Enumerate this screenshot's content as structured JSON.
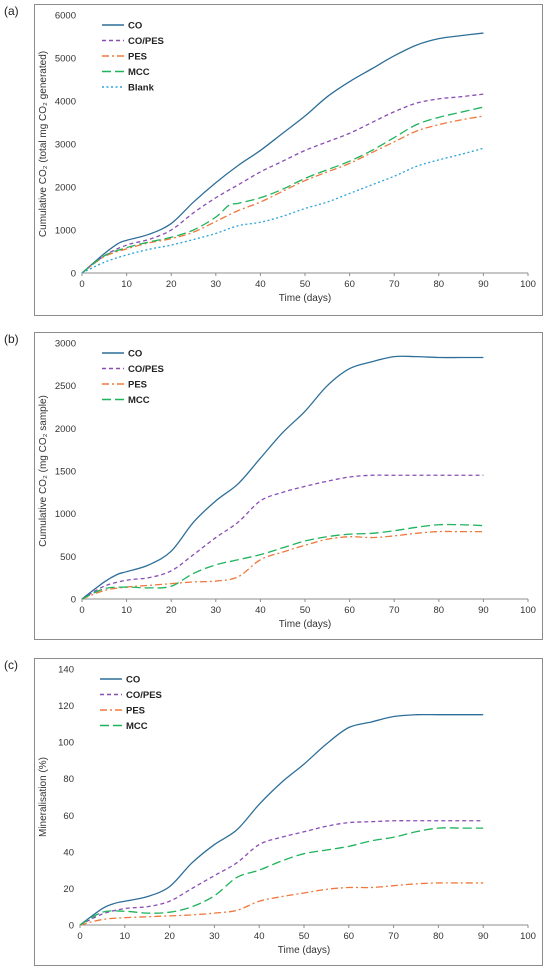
{
  "panels": [
    {
      "label": "(a)"
    },
    {
      "label": "(b)"
    },
    {
      "label": "(c)"
    }
  ],
  "chart_data": [
    {
      "type": "line",
      "panel": "(a)",
      "xlabel": "Time (days)",
      "ylabel": "Cumulative CO₂ (total mg CO₂ generated)",
      "xlim": [
        0,
        100
      ],
      "ylim": [
        0,
        6000
      ],
      "xticks": [
        0,
        10,
        20,
        30,
        40,
        50,
        60,
        70,
        80,
        90,
        100
      ],
      "yticks": [
        0,
        1000,
        2000,
        3000,
        4000,
        5000,
        6000
      ],
      "grid": false,
      "legend": "top-left",
      "series": [
        {
          "name": "CO",
          "color": "#2e6f99",
          "dash": "solid",
          "points": [
            [
              0,
              0
            ],
            [
              5,
              450
            ],
            [
              8,
              680
            ],
            [
              10,
              760
            ],
            [
              15,
              900
            ],
            [
              20,
              1150
            ],
            [
              25,
              1650
            ],
            [
              30,
              2100
            ],
            [
              35,
              2500
            ],
            [
              40,
              2850
            ],
            [
              45,
              3250
            ],
            [
              50,
              3650
            ],
            [
              55,
              4100
            ],
            [
              60,
              4450
            ],
            [
              65,
              4750
            ],
            [
              70,
              5050
            ],
            [
              75,
              5300
            ],
            [
              80,
              5450
            ],
            [
              85,
              5520
            ],
            [
              90,
              5580
            ]
          ]
        },
        {
          "name": "CO/PES",
          "color": "#8a4db5",
          "dash": "dash",
          "points": [
            [
              0,
              0
            ],
            [
              5,
              400
            ],
            [
              10,
              650
            ],
            [
              15,
              780
            ],
            [
              20,
              1000
            ],
            [
              25,
              1400
            ],
            [
              30,
              1750
            ],
            [
              35,
              2050
            ],
            [
              40,
              2350
            ],
            [
              45,
              2600
            ],
            [
              50,
              2850
            ],
            [
              55,
              3050
            ],
            [
              60,
              3250
            ],
            [
              65,
              3500
            ],
            [
              70,
              3750
            ],
            [
              75,
              3950
            ],
            [
              80,
              4050
            ],
            [
              85,
              4100
            ],
            [
              90,
              4160
            ]
          ]
        },
        {
          "name": "PES",
          "color": "#f0783c",
          "dash": "dashdot",
          "points": [
            [
              0,
              0
            ],
            [
              5,
              380
            ],
            [
              10,
              560
            ],
            [
              15,
              700
            ],
            [
              20,
              800
            ],
            [
              25,
              950
            ],
            [
              30,
              1200
            ],
            [
              35,
              1450
            ],
            [
              40,
              1650
            ],
            [
              45,
              1900
            ],
            [
              50,
              2150
            ],
            [
              55,
              2350
            ],
            [
              60,
              2550
            ],
            [
              65,
              2800
            ],
            [
              70,
              3050
            ],
            [
              75,
              3300
            ],
            [
              80,
              3450
            ],
            [
              85,
              3560
            ],
            [
              90,
              3650
            ]
          ]
        },
        {
          "name": "MCC",
          "color": "#1fb35c",
          "dash": "longdash",
          "points": [
            [
              0,
              0
            ],
            [
              5,
              400
            ],
            [
              10,
              590
            ],
            [
              15,
              720
            ],
            [
              20,
              830
            ],
            [
              25,
              1000
            ],
            [
              30,
              1300
            ],
            [
              33,
              1580
            ],
            [
              35,
              1620
            ],
            [
              40,
              1750
            ],
            [
              45,
              1950
            ],
            [
              50,
              2200
            ],
            [
              55,
              2400
            ],
            [
              60,
              2600
            ],
            [
              65,
              2850
            ],
            [
              70,
              3150
            ],
            [
              75,
              3450
            ],
            [
              80,
              3620
            ],
            [
              85,
              3740
            ],
            [
              90,
              3860
            ]
          ]
        },
        {
          "name": "Blank",
          "color": "#2ba3d9",
          "dash": "dot",
          "points": [
            [
              0,
              0
            ],
            [
              5,
              250
            ],
            [
              10,
              420
            ],
            [
              15,
              550
            ],
            [
              20,
              650
            ],
            [
              25,
              780
            ],
            [
              30,
              920
            ],
            [
              35,
              1100
            ],
            [
              40,
              1180
            ],
            [
              45,
              1320
            ],
            [
              50,
              1500
            ],
            [
              55,
              1650
            ],
            [
              60,
              1850
            ],
            [
              65,
              2050
            ],
            [
              70,
              2250
            ],
            [
              75,
              2480
            ],
            [
              80,
              2630
            ],
            [
              85,
              2760
            ],
            [
              90,
              2900
            ]
          ]
        }
      ]
    },
    {
      "type": "line",
      "panel": "(b)",
      "xlabel": "Time (days)",
      "ylabel": "Cumulative CO₂ (mg CO₂ sample)",
      "xlim": [
        0,
        100
      ],
      "ylim": [
        0,
        3000
      ],
      "xticks": [
        0,
        10,
        20,
        30,
        40,
        50,
        60,
        70,
        80,
        90,
        100
      ],
      "yticks": [
        0,
        500,
        1000,
        1500,
        2000,
        2500,
        3000
      ],
      "grid": false,
      "legend": "top-left",
      "series": [
        {
          "name": "CO",
          "color": "#2e6f99",
          "dash": "solid",
          "points": [
            [
              0,
              0
            ],
            [
              5,
              200
            ],
            [
              8,
              290
            ],
            [
              10,
              320
            ],
            [
              15,
              400
            ],
            [
              20,
              560
            ],
            [
              25,
              900
            ],
            [
              30,
              1150
            ],
            [
              35,
              1350
            ],
            [
              40,
              1650
            ],
            [
              45,
              1950
            ],
            [
              50,
              2200
            ],
            [
              55,
              2500
            ],
            [
              60,
              2700
            ],
            [
              65,
              2780
            ],
            [
              70,
              2840
            ],
            [
              75,
              2840
            ],
            [
              80,
              2830
            ],
            [
              85,
              2830
            ],
            [
              90,
              2830
            ]
          ]
        },
        {
          "name": "CO/PES",
          "color": "#8a4db5",
          "dash": "dash",
          "points": [
            [
              0,
              0
            ],
            [
              5,
              150
            ],
            [
              10,
              220
            ],
            [
              15,
              250
            ],
            [
              20,
              330
            ],
            [
              25,
              520
            ],
            [
              30,
              720
            ],
            [
              35,
              900
            ],
            [
              40,
              1150
            ],
            [
              45,
              1250
            ],
            [
              50,
              1320
            ],
            [
              55,
              1380
            ],
            [
              60,
              1430
            ],
            [
              65,
              1450
            ],
            [
              70,
              1450
            ],
            [
              75,
              1450
            ],
            [
              80,
              1450
            ],
            [
              85,
              1450
            ],
            [
              90,
              1450
            ]
          ]
        },
        {
          "name": "PES",
          "color": "#f0783c",
          "dash": "dashdot",
          "points": [
            [
              0,
              0
            ],
            [
              5,
              100
            ],
            [
              10,
              140
            ],
            [
              15,
              160
            ],
            [
              20,
              180
            ],
            [
              25,
              200
            ],
            [
              30,
              210
            ],
            [
              35,
              260
            ],
            [
              40,
              460
            ],
            [
              45,
              550
            ],
            [
              50,
              630
            ],
            [
              55,
              700
            ],
            [
              60,
              730
            ],
            [
              65,
              720
            ],
            [
              70,
              740
            ],
            [
              75,
              770
            ],
            [
              80,
              790
            ],
            [
              85,
              790
            ],
            [
              90,
              790
            ]
          ]
        },
        {
          "name": "MCC",
          "color": "#1fb35c",
          "dash": "longdash",
          "points": [
            [
              0,
              0
            ],
            [
              5,
              120
            ],
            [
              10,
              140
            ],
            [
              15,
              130
            ],
            [
              20,
              150
            ],
            [
              25,
              300
            ],
            [
              30,
              400
            ],
            [
              35,
              460
            ],
            [
              40,
              520
            ],
            [
              45,
              600
            ],
            [
              50,
              680
            ],
            [
              55,
              730
            ],
            [
              60,
              760
            ],
            [
              65,
              770
            ],
            [
              70,
              800
            ],
            [
              75,
              840
            ],
            [
              80,
              870
            ],
            [
              85,
              870
            ],
            [
              90,
              860
            ]
          ]
        }
      ]
    },
    {
      "type": "line",
      "panel": "(c)",
      "xlabel": "Time (days)",
      "ylabel": "Mineralisation (%)",
      "xlim": [
        0,
        100
      ],
      "ylim": [
        0,
        140
      ],
      "xticks": [
        0,
        10,
        20,
        30,
        40,
        50,
        60,
        70,
        80,
        90,
        100
      ],
      "yticks": [
        0,
        20,
        40,
        60,
        80,
        100,
        120,
        140
      ],
      "grid": false,
      "legend": "top-left",
      "series": [
        {
          "name": "CO",
          "color": "#2e6f99",
          "dash": "solid",
          "points": [
            [
              0,
              0
            ],
            [
              5,
              9
            ],
            [
              8,
              12
            ],
            [
              10,
              13
            ],
            [
              15,
              15.5
            ],
            [
              20,
              21
            ],
            [
              25,
              34
            ],
            [
              30,
              44
            ],
            [
              35,
              52
            ],
            [
              40,
              66
            ],
            [
              45,
              78
            ],
            [
              50,
              88
            ],
            [
              55,
              99
            ],
            [
              60,
              108
            ],
            [
              65,
              111
            ],
            [
              70,
              114
            ],
            [
              75,
              115
            ],
            [
              80,
              115
            ],
            [
              85,
              115
            ],
            [
              90,
              115
            ]
          ]
        },
        {
          "name": "CO/PES",
          "color": "#8a4db5",
          "dash": "dash",
          "points": [
            [
              0,
              0
            ],
            [
              5,
              6
            ],
            [
              10,
              9
            ],
            [
              15,
              10
            ],
            [
              20,
              13
            ],
            [
              25,
              20
            ],
            [
              30,
              27
            ],
            [
              35,
              34
            ],
            [
              40,
              44
            ],
            [
              45,
              48
            ],
            [
              50,
              51
            ],
            [
              55,
              54
            ],
            [
              60,
              56
            ],
            [
              65,
              56.5
            ],
            [
              70,
              57
            ],
            [
              75,
              57
            ],
            [
              80,
              57
            ],
            [
              85,
              57
            ],
            [
              90,
              57
            ]
          ]
        },
        {
          "name": "PES",
          "color": "#f0783c",
          "dash": "dashdot",
          "points": [
            [
              0,
              0
            ],
            [
              5,
              3
            ],
            [
              10,
              4
            ],
            [
              15,
              4.5
            ],
            [
              20,
              5
            ],
            [
              25,
              5.5
            ],
            [
              30,
              6.5
            ],
            [
              35,
              8
            ],
            [
              40,
              13
            ],
            [
              45,
              15.5
            ],
            [
              50,
              17.5
            ],
            [
              55,
              19.5
            ],
            [
              60,
              20.5
            ],
            [
              65,
              20.5
            ],
            [
              70,
              21.5
            ],
            [
              75,
              22.5
            ],
            [
              80,
              23
            ],
            [
              85,
              23
            ],
            [
              90,
              23
            ]
          ]
        },
        {
          "name": "MCC",
          "color": "#1fb35c",
          "dash": "longdash",
          "points": [
            [
              0,
              0
            ],
            [
              5,
              7
            ],
            [
              10,
              7.5
            ],
            [
              15,
              6.5
            ],
            [
              20,
              7
            ],
            [
              25,
              10
            ],
            [
              30,
              16
            ],
            [
              35,
              26
            ],
            [
              40,
              30
            ],
            [
              45,
              35
            ],
            [
              50,
              39
            ],
            [
              55,
              41
            ],
            [
              60,
              43
            ],
            [
              65,
              46
            ],
            [
              70,
              48
            ],
            [
              75,
              51
            ],
            [
              80,
              53
            ],
            [
              85,
              53
            ],
            [
              90,
              53
            ]
          ]
        }
      ]
    }
  ]
}
